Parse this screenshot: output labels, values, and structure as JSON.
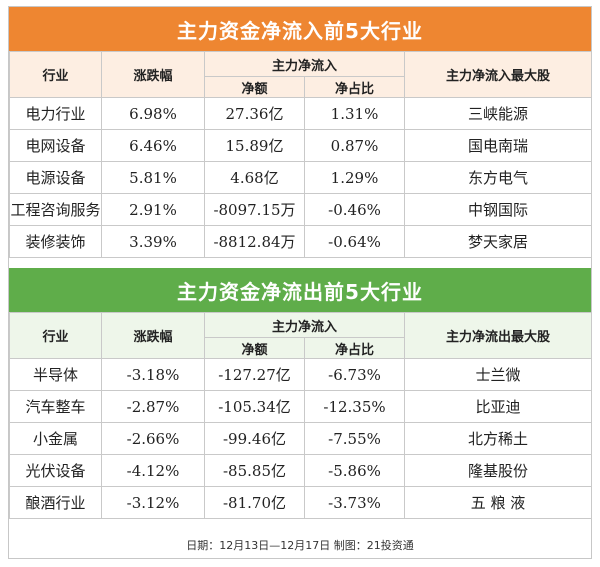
{
  "inflow": {
    "title": "主力资金净流入前5大行业",
    "headers": {
      "industry": "行业",
      "change": "涨跌幅",
      "net_group": "主力净流入",
      "net_amount": "净额",
      "net_ratio": "净占比",
      "top_stock": "主力净流入最大股"
    },
    "rows": [
      {
        "industry": "电力行业",
        "change": "6.98%",
        "amount": "27.36亿",
        "ratio": "1.31%",
        "stock": "三峡能源"
      },
      {
        "industry": "电网设备",
        "change": "6.46%",
        "amount": "15.89亿",
        "ratio": "0.87%",
        "stock": "国电南瑞"
      },
      {
        "industry": "电源设备",
        "change": "5.81%",
        "amount": "4.68亿",
        "ratio": "1.29%",
        "stock": "东方电气"
      },
      {
        "industry": "工程咨询服务",
        "change": "2.91%",
        "amount": "-8097.15万",
        "ratio": "-0.46%",
        "stock": "中钢国际"
      },
      {
        "industry": "装修装饰",
        "change": "3.39%",
        "amount": "-8812.84万",
        "ratio": "-0.64%",
        "stock": "梦天家居"
      }
    ]
  },
  "outflow": {
    "title": "主力资金净流出前5大行业",
    "headers": {
      "industry": "行业",
      "change": "涨跌幅",
      "net_group": "主力净流入",
      "net_amount": "净额",
      "net_ratio": "净占比",
      "top_stock": "主力净流出最大股"
    },
    "rows": [
      {
        "industry": "半导体",
        "change": "-3.18%",
        "amount": "-127.27亿",
        "ratio": "-6.73%",
        "stock": "士兰微"
      },
      {
        "industry": "汽车整车",
        "change": "-2.87%",
        "amount": "-105.34亿",
        "ratio": "-12.35%",
        "stock": "比亚迪"
      },
      {
        "industry": "小金属",
        "change": "-2.66%",
        "amount": "-99.46亿",
        "ratio": "-7.55%",
        "stock": "北方稀土"
      },
      {
        "industry": "光伏设备",
        "change": "-4.12%",
        "amount": "-85.85亿",
        "ratio": "-5.86%",
        "stock": "隆基股份"
      },
      {
        "industry": "酿酒行业",
        "change": "-3.12%",
        "amount": "-81.70亿",
        "ratio": "-3.73%",
        "stock": "五 粮 液"
      }
    ]
  },
  "footer": "日期：12月13日—12月17日  制图：21投资通",
  "colors": {
    "inflow_banner": "#ee8631",
    "outflow_banner": "#5fad4a",
    "inflow_header_bg": "#fdeee2",
    "outflow_header_bg": "#eef6ea"
  }
}
